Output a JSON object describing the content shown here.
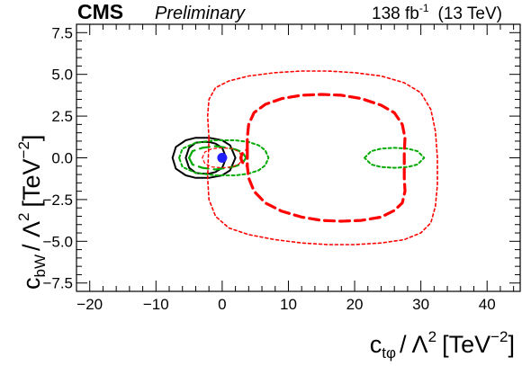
{
  "header": {
    "experiment": "CMS",
    "status": "Preliminary",
    "lumi": "138 fb",
    "lumi_exp": "-1",
    "energy": "(13 TeV)"
  },
  "chart_data": {
    "type": "scatter",
    "title": "",
    "xlabel": {
      "c": "c",
      "sub": "tφ",
      "over": "/ Λ",
      "pow": "2",
      "unit_open": "[TeV",
      "unit_pow": "−2",
      "unit_close": "]"
    },
    "ylabel": {
      "c": "c",
      "sub": "bW",
      "over": "/ Λ",
      "pow": "2",
      "unit_open": "[TeV",
      "unit_pow": "−2",
      "unit_close": "]"
    },
    "xlim": [
      -22,
      45
    ],
    "ylim": [
      -8.0,
      8.0
    ],
    "xticks": [
      -20,
      -10,
      0,
      10,
      20,
      30,
      40
    ],
    "yticks": [
      -7.5,
      -5.0,
      -2.5,
      0.0,
      2.5,
      5.0,
      7.5
    ],
    "xtick_labels": [
      "−20",
      "−10",
      "0",
      "10",
      "20",
      "30",
      "40"
    ],
    "ytick_labels": [
      "−7.5",
      "−5.0",
      "−2.5",
      "0.0",
      "2.5",
      "5.0",
      "7.5"
    ],
    "best_fit": {
      "x": 0.0,
      "y": 0.0,
      "color": "#1f1fff"
    },
    "series": [
      {
        "color": "#000000",
        "style": "solid",
        "width": 2.0,
        "x": [
          -5.5,
          -5.0,
          -4.0,
          -3.0,
          -2.0,
          -1.0,
          0.0,
          0.6,
          0.0,
          -1.0,
          -2.0,
          -3.0,
          -4.0,
          -5.0,
          -5.5
        ],
        "y": [
          0.0,
          0.6,
          0.9,
          0.95,
          0.95,
          0.85,
          0.6,
          0.0,
          -0.6,
          -0.85,
          -0.95,
          -0.95,
          -0.9,
          -0.6,
          0.0
        ]
      },
      {
        "color": "#000000",
        "style": "solid",
        "width": 2.0,
        "x": [
          -7.5,
          -7.0,
          -5.5,
          -4.0,
          -2.0,
          0.0,
          1.2,
          2.0,
          1.2,
          0.0,
          -2.0,
          -4.0,
          -5.5,
          -7.0,
          -7.5
        ],
        "y": [
          0.0,
          0.65,
          1.05,
          1.2,
          1.2,
          1.05,
          0.75,
          0.0,
          -0.75,
          -1.05,
          -1.2,
          -1.2,
          -1.05,
          -0.65,
          0.0
        ]
      },
      {
        "color": "#00aa00",
        "style": "dashed",
        "width": 2.2,
        "x": [
          -5.0,
          -4.5,
          -3.0,
          -1.0,
          0.8,
          2.0,
          3.0,
          3.6,
          3.0,
          2.0,
          0.8,
          -1.0,
          -3.0,
          -4.5,
          -5.0
        ],
        "y": [
          0.0,
          0.4,
          0.6,
          0.7,
          0.6,
          0.5,
          0.35,
          0.0,
          -0.35,
          -0.5,
          -0.6,
          -0.7,
          -0.6,
          -0.4,
          0.0
        ]
      },
      {
        "color": "#00aa00",
        "style": "dotted",
        "width": 2.0,
        "x": [
          -6.5,
          -6.0,
          -4.0,
          -1.0,
          2.0,
          4.0,
          5.5,
          6.5,
          7.0,
          6.5,
          5.5,
          4.0,
          2.0,
          -1.0,
          -4.0,
          -6.0,
          -6.5
        ],
        "y": [
          0.0,
          0.55,
          0.9,
          1.05,
          1.05,
          0.95,
          0.75,
          0.45,
          0.0,
          -0.45,
          -0.75,
          -0.95,
          -1.05,
          -1.05,
          -0.9,
          -0.55,
          0.0
        ]
      },
      {
        "color": "#00aa00",
        "style": "dotted",
        "width": 2.0,
        "x": [
          21.5,
          22.5,
          24.0,
          26.0,
          28.0,
          29.5,
          30.5,
          29.5,
          28.0,
          26.0,
          24.0,
          22.5,
          21.5
        ],
        "y": [
          0.0,
          0.4,
          0.55,
          0.6,
          0.55,
          0.4,
          0.0,
          -0.4,
          -0.55,
          -0.6,
          -0.55,
          -0.4,
          0.0
        ]
      },
      {
        "color": "#ff0000",
        "style": "dotted",
        "width": 1.2,
        "x": [
          -3.0,
          -2.6,
          -1.5,
          0.0,
          1.5,
          2.6,
          3.0,
          2.6,
          1.5,
          0.0,
          -1.5,
          -2.6,
          -3.0
        ],
        "y": [
          0.0,
          0.35,
          0.55,
          0.6,
          0.55,
          0.35,
          0.0,
          -0.35,
          -0.55,
          -0.6,
          -0.55,
          -0.35,
          0.0
        ]
      },
      {
        "color": "#ff0000",
        "style": "dashed",
        "width": 3.2,
        "x": [
          3.8,
          3.8,
          4.0,
          4.8,
          6.5,
          9.0,
          12.0,
          15.0,
          18.0,
          21.0,
          24.0,
          26.0,
          27.2,
          27.6,
          27.5,
          27.5,
          27.5,
          27.6,
          27.2,
          26.0,
          24.0,
          21.0,
          18.0,
          15.0,
          12.0,
          9.0,
          6.5,
          4.8,
          4.0,
          3.8,
          3.8,
          3.0,
          2.8,
          3.0,
          3.8
        ],
        "y": [
          0.5,
          1.2,
          2.0,
          2.7,
          3.2,
          3.55,
          3.75,
          3.8,
          3.75,
          3.55,
          3.15,
          2.7,
          2.0,
          1.2,
          0.3,
          -0.3,
          -1.2,
          -2.0,
          -2.7,
          -3.15,
          -3.55,
          -3.75,
          -3.8,
          -3.75,
          -3.55,
          -3.2,
          -2.7,
          -2.0,
          -1.2,
          -0.5,
          0.5,
          0.25,
          0.0,
          -0.25,
          -0.5
        ]
      },
      {
        "color": "#ff0000",
        "style": "dotted",
        "width": 1.6,
        "x": [
          -2.0,
          -2.2,
          -2.0,
          -1.0,
          1.0,
          4.0,
          8.0,
          12.0,
          16.0,
          20.0,
          24.0,
          27.5,
          30.0,
          31.5,
          32.2,
          32.5,
          32.5,
          32.2,
          31.5,
          30.0,
          27.5,
          24.0,
          20.0,
          16.0,
          12.0,
          8.0,
          4.0,
          1.0,
          -1.0,
          -2.0,
          -2.2,
          -2.0
        ],
        "y": [
          1.2,
          2.5,
          3.5,
          4.2,
          4.6,
          4.9,
          5.1,
          5.2,
          5.2,
          5.1,
          4.9,
          4.5,
          3.9,
          2.9,
          1.6,
          0.0,
          -1.6,
          -2.9,
          -3.9,
          -4.5,
          -4.9,
          -5.1,
          -5.2,
          -5.2,
          -5.1,
          -4.9,
          -4.6,
          -4.2,
          -3.5,
          -2.5,
          -1.2,
          1.2
        ]
      }
    ]
  }
}
